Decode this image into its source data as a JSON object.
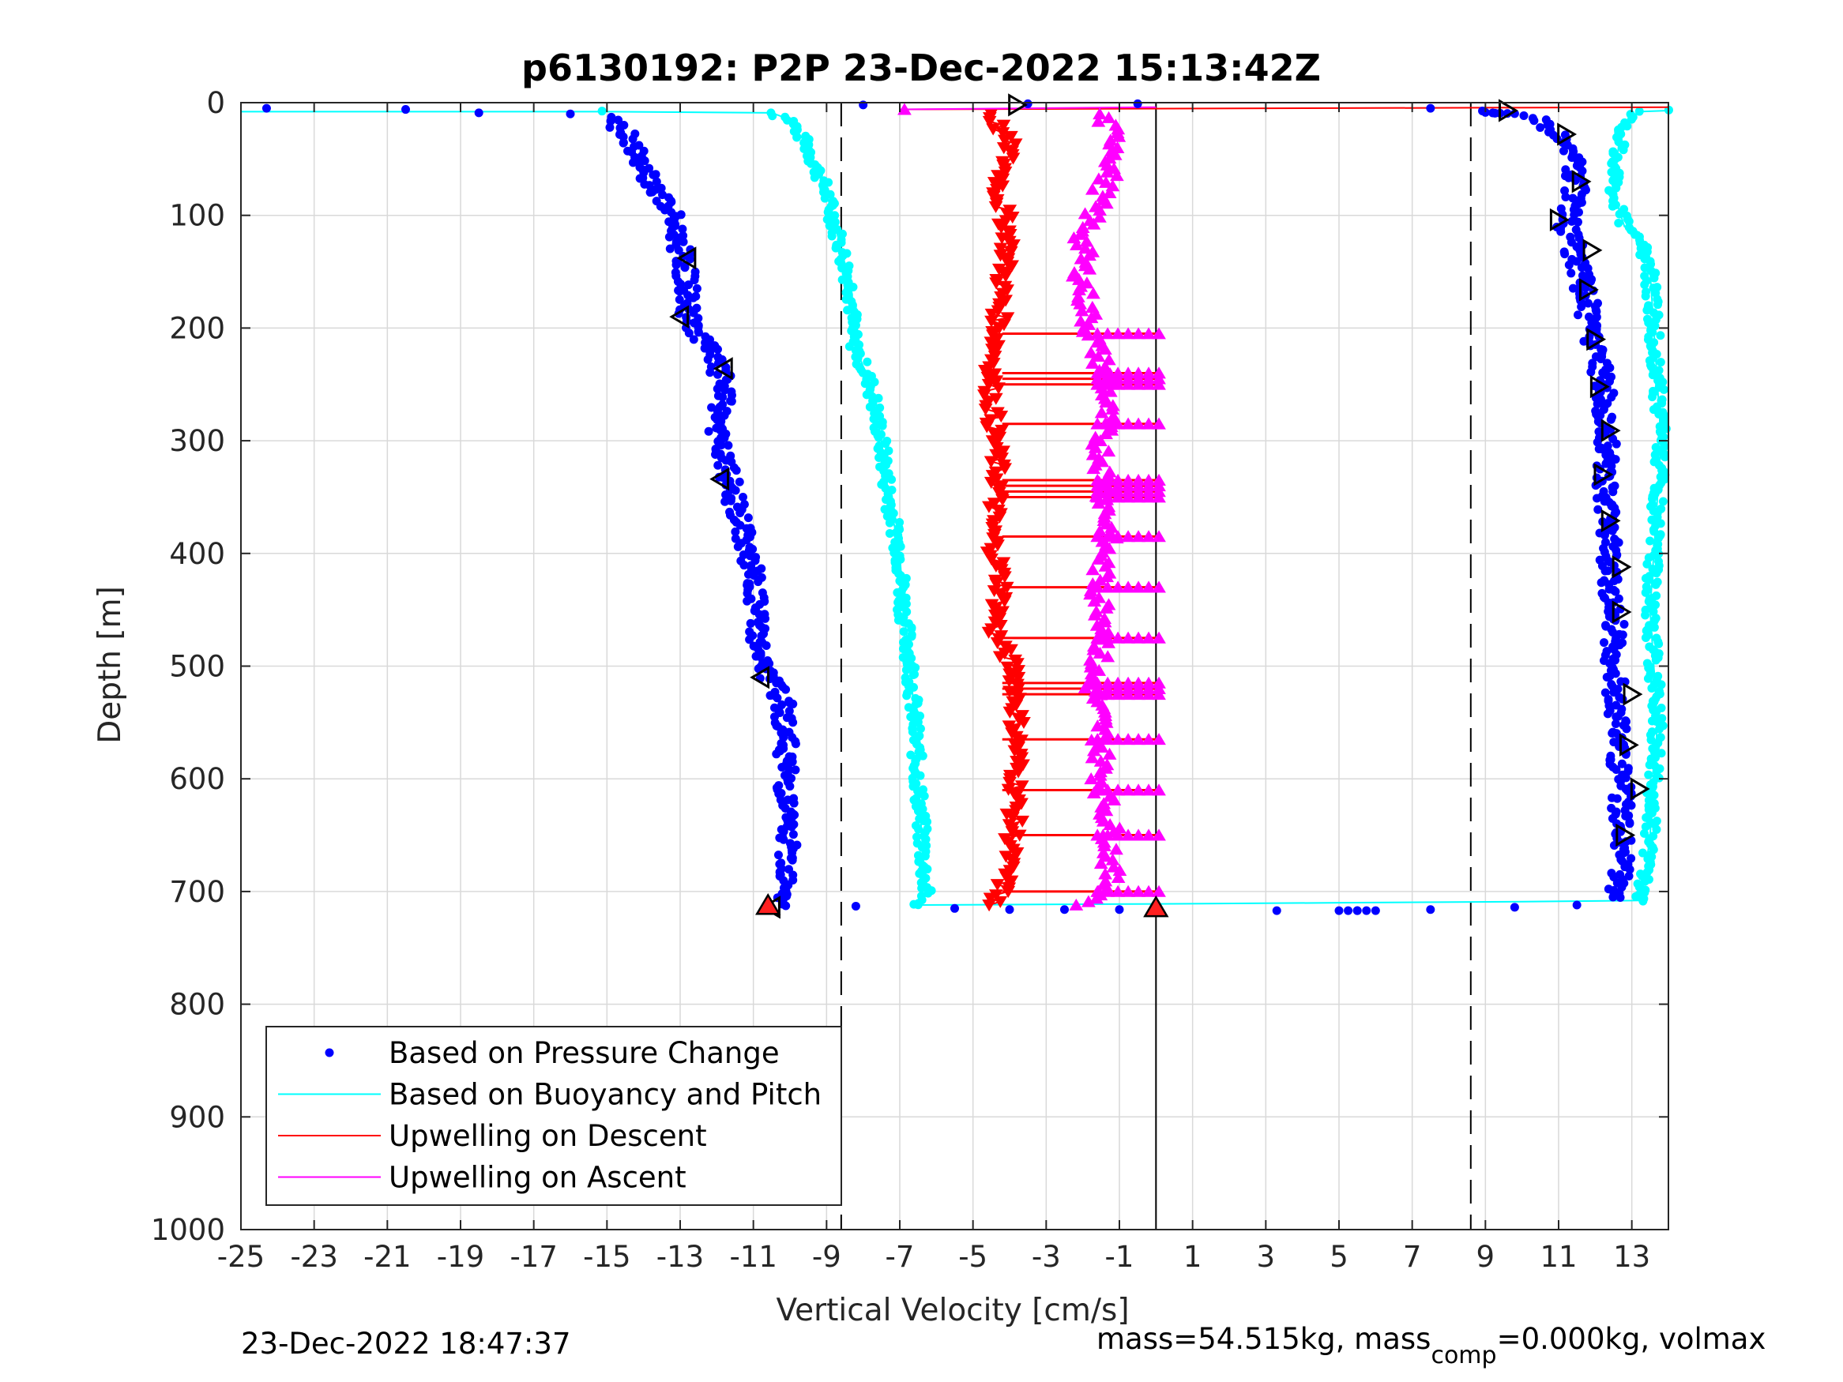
{
  "chart_data": {
    "type": "scatter",
    "title": "p6130192: P2P 23-Dec-2022 15:13:42Z",
    "xlabel": "Vertical Velocity [cm/s]",
    "ylabel": "Depth [m]",
    "xlim": [
      -25,
      14
    ],
    "ylim": [
      0,
      1000
    ],
    "y_reversed": true,
    "grid": true,
    "x_ticks": [
      "-25",
      "-23",
      "-21",
      "-19",
      "-17",
      "-15",
      "-13",
      "-11",
      "-9",
      "-7",
      "-5",
      "-3",
      "-1",
      "1",
      "3",
      "5",
      "7",
      "9",
      "11",
      "13"
    ],
    "y_ticks": [
      "0",
      "100",
      "200",
      "300",
      "400",
      "500",
      "600",
      "700",
      "800",
      "900",
      "1000"
    ],
    "legend_position": "bottom-left",
    "legend": [
      {
        "label": "Based on Pressure Change",
        "color": "#0000ff",
        "marker": "dot"
      },
      {
        "label": "Based on Buoyancy and Pitch",
        "color": "#00ffff",
        "marker": "line"
      },
      {
        "label": "Upwelling on Descent",
        "color": "#ff0000",
        "marker": "line"
      },
      {
        "label": "Upwelling on Ascent",
        "color": "#ff00ff",
        "marker": "line"
      }
    ],
    "reference_lines_x": [
      -8.6,
      8.6,
      0
    ],
    "series": [
      {
        "name": "Based on Pressure Change",
        "color": "#0000ff",
        "style": "dots",
        "descent": [
          [
            -24.3,
            5
          ],
          [
            -20.5,
            6
          ],
          [
            -18.5,
            9
          ],
          [
            -16.0,
            10
          ],
          [
            -15.0,
            14
          ],
          [
            -14.5,
            25
          ],
          [
            -14.2,
            40
          ],
          [
            -13.8,
            70
          ],
          [
            -13.2,
            100
          ],
          [
            -13.0,
            130
          ],
          [
            -12.8,
            160
          ],
          [
            -12.8,
            190
          ],
          [
            -12.2,
            220
          ],
          [
            -11.8,
            250
          ],
          [
            -12.0,
            300
          ],
          [
            -11.6,
            340
          ],
          [
            -11.3,
            380
          ],
          [
            -11.0,
            420
          ],
          [
            -10.9,
            460
          ],
          [
            -10.8,
            500
          ],
          [
            -10.2,
            530
          ],
          [
            -10.1,
            560
          ],
          [
            -10.1,
            600
          ],
          [
            -10.1,
            650
          ],
          [
            -10.0,
            700
          ],
          [
            -10.3,
            712
          ]
        ],
        "ascent": [
          [
            -8.2,
            713
          ],
          [
            -5.5,
            715
          ],
          [
            -4.0,
            716
          ],
          [
            -2.5,
            716
          ],
          [
            -1.0,
            716
          ],
          [
            3.3,
            717
          ],
          [
            5.5,
            717
          ],
          [
            7.5,
            716
          ],
          [
            9.8,
            714
          ],
          [
            11.5,
            712
          ],
          [
            12.5,
            706
          ],
          [
            12.7,
            690
          ],
          [
            12.7,
            650
          ],
          [
            12.7,
            600
          ],
          [
            12.6,
            550
          ],
          [
            12.5,
            500
          ],
          [
            12.5,
            450
          ],
          [
            12.4,
            400
          ],
          [
            12.3,
            350
          ],
          [
            12.3,
            300
          ],
          [
            12.2,
            250
          ],
          [
            11.9,
            200
          ],
          [
            11.6,
            150
          ],
          [
            11.2,
            110
          ],
          [
            11.5,
            70
          ],
          [
            11.3,
            35
          ],
          [
            10.5,
            15
          ],
          [
            9.2,
            8
          ],
          [
            7.5,
            5
          ],
          [
            -8.0,
            2
          ],
          [
            -3.5,
            1
          ],
          [
            -0.5,
            1
          ]
        ]
      },
      {
        "name": "Based on Buoyancy and Pitch",
        "color": "#00ffff",
        "style": "line",
        "descent": [
          [
            -25.0,
            8
          ],
          [
            -20,
            8
          ],
          [
            -15,
            8
          ],
          [
            -10.5,
            9
          ],
          [
            -10.0,
            15
          ],
          [
            -9.5,
            40
          ],
          [
            -9.0,
            80
          ],
          [
            -8.6,
            130
          ],
          [
            -8.3,
            170
          ],
          [
            -8.3,
            210
          ],
          [
            -7.8,
            250
          ],
          [
            -7.5,
            300
          ],
          [
            -7.3,
            350
          ],
          [
            -7.0,
            400
          ],
          [
            -6.9,
            450
          ],
          [
            -6.7,
            500
          ],
          [
            -6.6,
            550
          ],
          [
            -6.5,
            600
          ],
          [
            -6.4,
            650
          ],
          [
            -6.3,
            700
          ],
          [
            -6.5,
            712
          ]
        ],
        "ascent": [
          [
            -6.5,
            712
          ],
          [
            0,
            711
          ],
          [
            5,
            710
          ],
          [
            10,
            709
          ],
          [
            13.2,
            708
          ],
          [
            13.3,
            700
          ],
          [
            13.5,
            650
          ],
          [
            13.6,
            600
          ],
          [
            13.7,
            550
          ],
          [
            13.6,
            500
          ],
          [
            13.5,
            450
          ],
          [
            13.6,
            400
          ],
          [
            13.7,
            350
          ],
          [
            13.8,
            300
          ],
          [
            13.7,
            250
          ],
          [
            13.6,
            200
          ],
          [
            13.5,
            150
          ],
          [
            13.2,
            115
          ],
          [
            12.8,
            110
          ],
          [
            12.5,
            80
          ],
          [
            12.6,
            50
          ],
          [
            12.7,
            20
          ],
          [
            13.2,
            8
          ],
          [
            14.0,
            7
          ]
        ]
      },
      {
        "name": "Upwelling on Descent",
        "color": "#ff0000",
        "style": "triangle-down",
        "values": [
          [
            -4.5,
            10
          ],
          [
            -4.0,
            40
          ],
          [
            -4.3,
            80
          ],
          [
            -4.0,
            120
          ],
          [
            -4.2,
            160
          ],
          [
            -4.3,
            200
          ],
          [
            -4.5,
            250
          ],
          [
            -4.4,
            300
          ],
          [
            -4.3,
            340
          ],
          [
            -4.5,
            380
          ],
          [
            -4.2,
            430
          ],
          [
            -4.4,
            470
          ],
          [
            -3.8,
            510
          ],
          [
            -3.8,
            550
          ],
          [
            -3.8,
            600
          ],
          [
            -3.9,
            650
          ],
          [
            -4.2,
            700
          ],
          [
            -4.5,
            712
          ]
        ]
      },
      {
        "name": "Upwelling on Ascent",
        "color": "#ff00ff",
        "style": "triangle-up",
        "values": [
          [
            -7.0,
            6
          ],
          [
            -1.5,
            10
          ],
          [
            -1.0,
            40
          ],
          [
            -1.5,
            80
          ],
          [
            -2.0,
            120
          ],
          [
            -2.0,
            160
          ],
          [
            -1.8,
            200
          ],
          [
            -1.3,
            250
          ],
          [
            -1.5,
            300
          ],
          [
            -1.4,
            340
          ],
          [
            -1.3,
            380
          ],
          [
            -1.6,
            430
          ],
          [
            -1.3,
            470
          ],
          [
            -1.8,
            510
          ],
          [
            -1.5,
            550
          ],
          [
            -1.5,
            600
          ],
          [
            -1.2,
            650
          ],
          [
            -1.3,
            700
          ],
          [
            -2.0,
            712
          ]
        ]
      }
    ],
    "markers": {
      "descent_triangles": [
        [
          -12.8,
          138
        ],
        [
          -13.0,
          190
        ],
        [
          -11.8,
          236
        ],
        [
          -11.9,
          334
        ],
        [
          -10.8,
          510
        ],
        [
          -10.5,
          714
        ]
      ],
      "ascent_triangles": [
        [
          -3.8,
          2
        ],
        [
          9.6,
          7
        ],
        [
          11.2,
          28
        ],
        [
          11.6,
          70
        ],
        [
          11.0,
          104
        ],
        [
          11.9,
          131
        ],
        [
          11.8,
          166
        ],
        [
          12.0,
          210
        ],
        [
          12.1,
          252
        ],
        [
          12.4,
          291
        ],
        [
          12.2,
          330
        ],
        [
          12.4,
          371
        ],
        [
          12.7,
          412
        ],
        [
          12.7,
          452
        ],
        [
          13.0,
          525
        ],
        [
          12.9,
          570
        ],
        [
          13.2,
          609
        ],
        [
          12.8,
          650
        ]
      ],
      "red_filled_triangles": [
        [
          -10.6,
          712
        ],
        [
          0,
          714
        ]
      ]
    },
    "descent_x_horizontal_bars_y": [
      205,
      240,
      245,
      250,
      285,
      335,
      340,
      345,
      350,
      385,
      430,
      475,
      515,
      520,
      525,
      565,
      610,
      650,
      700
    ]
  },
  "footer": {
    "timestamp": "23-Dec-2022 18:47:37",
    "mass_text": "mass=54.515kg, mass",
    "mass_sub": "comp",
    "mass_tail": "=0.000kg, volmax"
  }
}
